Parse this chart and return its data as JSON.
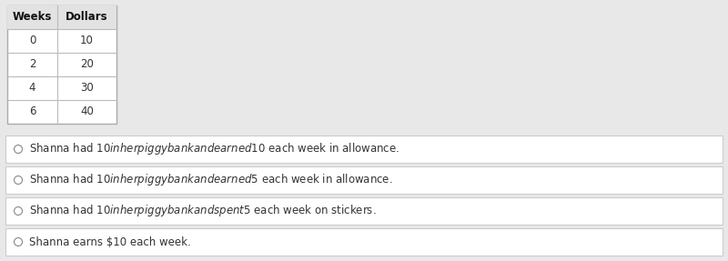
{
  "table_headers": [
    "Weeks",
    "Dollars"
  ],
  "table_rows": [
    [
      "0",
      "10"
    ],
    [
      "2",
      "20"
    ],
    [
      "4",
      "30"
    ],
    [
      "6",
      "40"
    ]
  ],
  "options": [
    "Shanna had $10 in her piggy bank and earned $10 each week in allowance.",
    "Shanna had $10 in her piggy bank and earned $5 each week in allowance.",
    "Shanna had $10 in her piggy bank and spent $5 each week on stickers.",
    "Shanna earns $10 each week."
  ],
  "bg_color": "#e8e8e8",
  "table_bg": "#ffffff",
  "table_header_bg": "#e2e2e2",
  "option_box_bg": "#ffffff",
  "option_box_border": "#cccccc",
  "text_color": "#333333",
  "header_text_color": "#111111",
  "font_size": 8.5,
  "header_font_size": 8.5,
  "fig_w": 8.0,
  "fig_h": 2.87,
  "dpi": 100
}
